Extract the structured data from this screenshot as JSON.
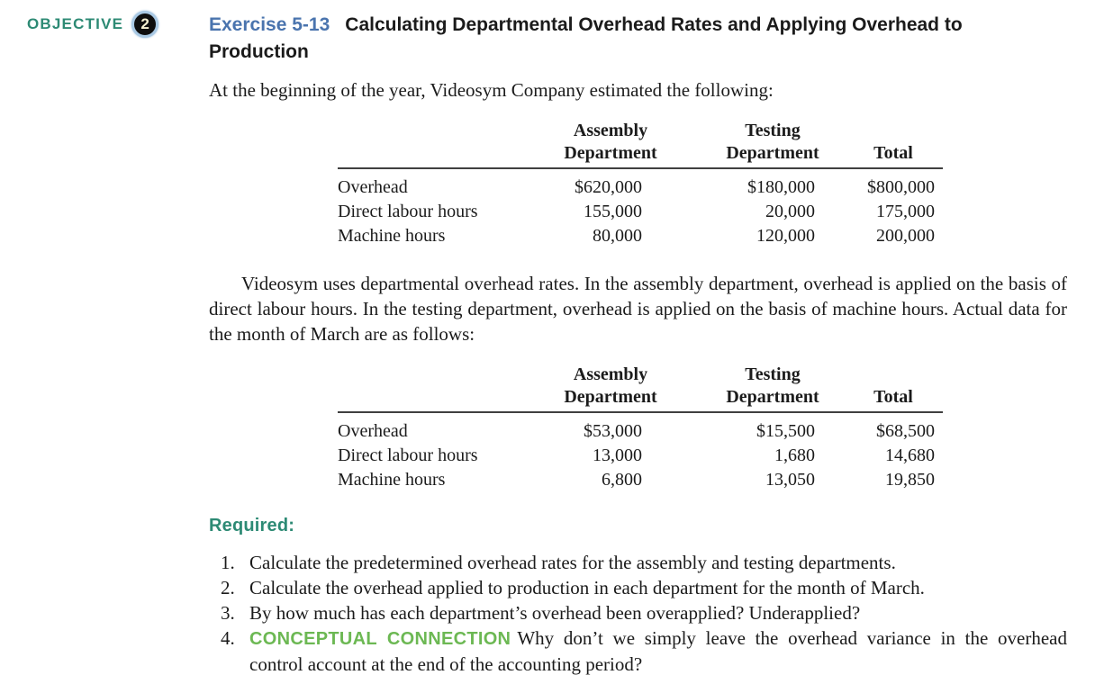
{
  "objective": {
    "label": "OBJECTIVE",
    "number": "2"
  },
  "exercise": {
    "code": "Exercise 5-13",
    "title_line1": "Calculating Departmental Overhead Rates and Applying Overhead to",
    "title_line2": "Production"
  },
  "intro": "At the beginning of the year, Videosym Company estimated the following:",
  "tables": [
    {
      "headers": {
        "assembly_l1": "Assembly",
        "assembly_l2": "Department",
        "testing_l1": "Testing",
        "testing_l2": "Department",
        "total": "Total"
      },
      "rows": [
        {
          "label": "Overhead",
          "assembly": "$620,000",
          "testing": "$180,000",
          "total": "$800,000"
        },
        {
          "label": "Direct labour hours",
          "assembly": "155,000",
          "testing": "20,000",
          "total": "175,000"
        },
        {
          "label": "Machine hours",
          "assembly": "80,000",
          "testing": "120,000",
          "total": "200,000"
        }
      ]
    },
    {
      "headers": {
        "assembly_l1": "Assembly",
        "assembly_l2": "Department",
        "testing_l1": "Testing",
        "testing_l2": "Department",
        "total": "Total"
      },
      "rows": [
        {
          "label": "Overhead",
          "assembly": "$53,000",
          "testing": "$15,500",
          "total": "$68,500"
        },
        {
          "label": "Direct labour hours",
          "assembly": "13,000",
          "testing": "1,680",
          "total": "14,680"
        },
        {
          "label": "Machine hours",
          "assembly": "6,800",
          "testing": "13,050",
          "total": "19,850"
        }
      ]
    }
  ],
  "body_para": "Videosym uses departmental overhead rates. In the assembly department, overhead is applied on the basis of direct labour hours. In the testing department, overhead is applied on the basis of machine hours. Actual data for the month of March are as follows:",
  "required": {
    "label": "Required:",
    "items": [
      {
        "num": "1.",
        "text": "Calculate the predetermined overhead rates for the assembly and testing departments."
      },
      {
        "num": "2.",
        "text": "Calculate the overhead applied to production in each department for the month of March."
      },
      {
        "num": "3.",
        "text": "By how much has each department’s overhead been overapplied? Underapplied?"
      },
      {
        "num": "4.",
        "badge": "CONCEPTUAL CONNECTION",
        "text": "Why don’t we simply leave the overhead variance in the overhead control account at the end of the accounting period?"
      }
    ]
  },
  "colors": {
    "teal": "#2d8a74",
    "blue": "#4a74ae",
    "green": "#6cb853",
    "ink": "#1b1b1b"
  }
}
